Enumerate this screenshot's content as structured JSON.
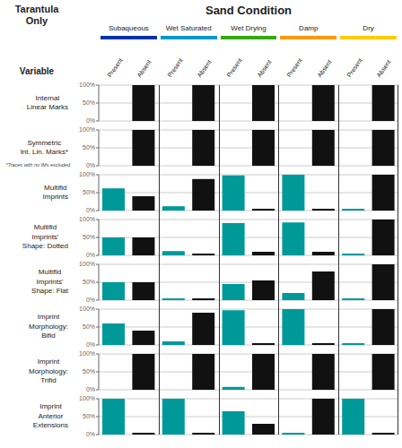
{
  "chart_data": {
    "type": "bar",
    "title": "Sand Condition",
    "subtitle": "Tarantula\nOnly",
    "annotations": [
      "Variable"
    ],
    "categories": [
      "Present",
      "Absent",
      "Present",
      "Absent",
      "Present",
      "Absent",
      "Present",
      "Absent",
      "Present",
      "Absent"
    ],
    "colors": [
      "#009999",
      "#111111",
      "#009999",
      "#111111",
      "#009999",
      "#111111",
      "#009999",
      "#111111",
      "#009999",
      "#111111"
    ],
    "groups": [
      {
        "name": "Subaqueous",
        "color": "#0033aa"
      },
      {
        "name": "Wet Saturated",
        "color": "#0099cc"
      },
      {
        "name": "Wet Drying",
        "color": "#33aa00"
      },
      {
        "name": "Damp",
        "color": "#ff9900"
      },
      {
        "name": "Dry",
        "color": "#ffcc00"
      }
    ],
    "series": [
      {
        "name": "Internal\nLinear Marks",
        "values": [
          0,
          100,
          0,
          100,
          0,
          100,
          0,
          100,
          0,
          100
        ]
      },
      {
        "name": "Symmetric\nInt. Lin. Marks*",
        "annotation": "*Traces with no IMs excluded",
        "values": [
          0,
          100,
          0,
          100,
          0,
          100,
          0,
          100,
          0,
          100
        ]
      },
      {
        "name": "Multifid\nImprints",
        "values": [
          62,
          40,
          12,
          88,
          98,
          5,
          100,
          5,
          5,
          100
        ]
      },
      {
        "name": "Multifid\nImprints'\nShape: Dotted",
        "values": [
          50,
          50,
          12,
          5,
          90,
          10,
          92,
          10,
          5,
          100
        ]
      },
      {
        "name": "Multifid\nImprints'\nShape: Flat",
        "values": [
          50,
          50,
          5,
          5,
          45,
          55,
          20,
          80,
          5,
          100
        ]
      },
      {
        "name": "Imprint\nMorphology:\nBifid",
        "values": [
          60,
          40,
          10,
          90,
          97,
          5,
          100,
          5,
          5,
          100
        ]
      },
      {
        "name": "Imprint\nMorphology:\nTrifid",
        "values": [
          0,
          100,
          0,
          100,
          8,
          100,
          0,
          100,
          0,
          100
        ]
      },
      {
        "name": "Imprint\nAnterior\nExtensions",
        "values": [
          100,
          5,
          100,
          5,
          65,
          30,
          5,
          100,
          100,
          5
        ]
      }
    ],
    "ylim": [
      0,
      100
    ],
    "yticks": [
      {
        "value": 0,
        "label": "0%"
      },
      {
        "value": 50,
        "label": "50%"
      },
      {
        "value": 100,
        "label": "100%"
      }
    ],
    "grid": true
  }
}
